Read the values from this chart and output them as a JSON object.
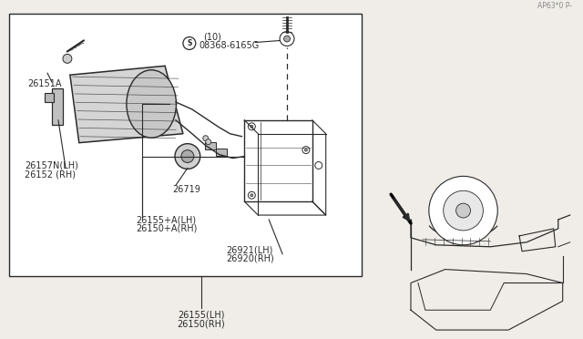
{
  "bg_color": "#f0ede8",
  "box_color": "#ffffff",
  "line_color": "#2a2a2a",
  "text_color": "#2a2a2a",
  "page_code": "AP63*0 P-",
  "labels": {
    "top": [
      "26150(RH)",
      "26155(LH)"
    ],
    "housing": [
      "26920(RH)",
      "26921(LH)"
    ],
    "assembly": [
      "26150+A(RH)",
      "26155+A(LH)"
    ],
    "bracket": [
      "26152 (RH)",
      "26157N(LH)"
    ],
    "socket": "26719",
    "retainer": "26151A",
    "bolt": [
      "08368-6165G",
      "(10)"
    ]
  }
}
